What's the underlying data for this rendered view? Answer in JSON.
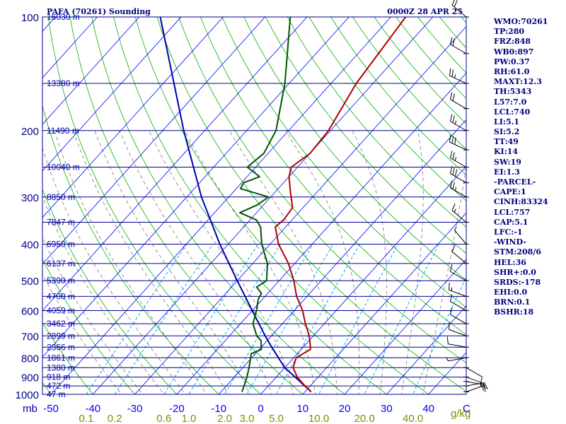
{
  "header": {
    "station": "PAFA (70261) Sounding",
    "time": "0000Z 28 APR 25"
  },
  "indices": [
    "WMO:70261",
    "TP:280",
    "FRZ:848",
    "WB0:897",
    "PW:0.37",
    "RH:61.0",
    "MAXT:12.3",
    "TH:5343",
    "L57:7.0",
    "LCL:740",
    "LI:5.1",
    "SI:5.2",
    "TT:49",
    "KI:14",
    "SW:19",
    "EI:1.3",
    "-PARCEL-",
    "CAPE:1",
    "CINH:83324",
    "LCL:757",
    "CAP:5.1",
    "LFC:-1",
    "-WIND-",
    "STM:208/6",
    "HEL:36",
    "SHR+:0.0",
    "SRDS:-178",
    "EHI:0.0",
    "BRN:0.1",
    "BSHR:18"
  ],
  "colors": {
    "isobar": "#00008b",
    "isotherm": "#0000ff",
    "dry_adiabat": "#00b000",
    "moist_adiabat": "#777777",
    "mixing_ratio": "#00aaff",
    "temperature": "#b00000",
    "dewpoint": "#005500",
    "parcel": "#0000aa",
    "mixing_label": "#888800"
  },
  "chart_data": {
    "type": "skew-t",
    "pressure_axis": {
      "scale": "log",
      "range": [
        1000,
        100
      ],
      "unit": "mb",
      "tick_labels": [
        "100",
        "200",
        "300",
        "400",
        "500",
        "600",
        "700",
        "800",
        "900",
        "1000"
      ]
    },
    "temperature_axis": {
      "unit": "C",
      "range": [
        -50,
        50
      ],
      "tick_labels": [
        "-50",
        "-40",
        "-30",
        "-20",
        "-10",
        "0",
        "10",
        "20",
        "30",
        "40"
      ]
    },
    "height_labels": [
      {
        "p": 100,
        "text": "16030 m"
      },
      {
        "p": 150,
        "text": "13380 m"
      },
      {
        "p": 200,
        "text": "11490 m"
      },
      {
        "p": 250,
        "text": "10040 m"
      },
      {
        "p": 300,
        "text": "8850 m"
      },
      {
        "p": 350,
        "text": "7847 m"
      },
      {
        "p": 400,
        "text": "6950 m"
      },
      {
        "p": 450,
        "text": "6137 m"
      },
      {
        "p": 500,
        "text": "5390 m"
      },
      {
        "p": 550,
        "text": "4700 m"
      },
      {
        "p": 600,
        "text": "4059 m"
      },
      {
        "p": 650,
        "text": "3462 m"
      },
      {
        "p": 700,
        "text": "2899 m"
      },
      {
        "p": 750,
        "text": "2366 m"
      },
      {
        "p": 800,
        "text": "1861 m"
      },
      {
        "p": 850,
        "text": "1380 m"
      },
      {
        "p": 900,
        "text": "918 m"
      },
      {
        "p": 950,
        "text": "472 m"
      },
      {
        "p": 1000,
        "text": "47 m"
      }
    ],
    "mixing_ratio_axis": {
      "unit": "g/kg",
      "labels": [
        "0.1",
        "0.2",
        "0.6",
        "1.0",
        "2.0",
        "3.0",
        "5.0",
        "10.0",
        "20.0",
        "40.0"
      ]
    },
    "temperature": [
      {
        "p": 985,
        "t": 11.5
      },
      {
        "p": 940,
        "t": 8.0
      },
      {
        "p": 900,
        "t": 5.0
      },
      {
        "p": 850,
        "t": 2.0
      },
      {
        "p": 800,
        "t": 0.6
      },
      {
        "p": 760,
        "t": 2.2
      },
      {
        "p": 740,
        "t": 1.2
      },
      {
        "p": 700,
        "t": -1.0
      },
      {
        "p": 650,
        "t": -4.5
      },
      {
        "p": 600,
        "t": -8.0
      },
      {
        "p": 550,
        "t": -12.5
      },
      {
        "p": 500,
        "t": -16.5
      },
      {
        "p": 450,
        "t": -21.5
      },
      {
        "p": 400,
        "t": -28.0
      },
      {
        "p": 360,
        "t": -32.5
      },
      {
        "p": 345,
        "t": -32.0
      },
      {
        "p": 320,
        "t": -32.5
      },
      {
        "p": 290,
        "t": -36.5
      },
      {
        "p": 265,
        "t": -40.0
      },
      {
        "p": 250,
        "t": -41.5
      },
      {
        "p": 230,
        "t": -40.0
      },
      {
        "p": 200,
        "t": -40.5
      },
      {
        "p": 150,
        "t": -44.0
      },
      {
        "p": 100,
        "t": -46.5
      }
    ],
    "dewpoint": [
      {
        "p": 985,
        "t": -5.0
      },
      {
        "p": 940,
        "t": -6.0
      },
      {
        "p": 900,
        "t": -7.0
      },
      {
        "p": 850,
        "t": -8.5
      },
      {
        "p": 780,
        "t": -11.0
      },
      {
        "p": 760,
        "t": -9.5
      },
      {
        "p": 720,
        "t": -11.5
      },
      {
        "p": 700,
        "t": -13.5
      },
      {
        "p": 650,
        "t": -17.0
      },
      {
        "p": 600,
        "t": -19.0
      },
      {
        "p": 560,
        "t": -21.0
      },
      {
        "p": 540,
        "t": -21.5
      },
      {
        "p": 520,
        "t": -24.0
      },
      {
        "p": 500,
        "t": -23.0
      },
      {
        "p": 450,
        "t": -26.5
      },
      {
        "p": 400,
        "t": -32.0
      },
      {
        "p": 360,
        "t": -36.0
      },
      {
        "p": 345,
        "t": -38.5
      },
      {
        "p": 330,
        "t": -44.0
      },
      {
        "p": 315,
        "t": -41.5
      },
      {
        "p": 300,
        "t": -40.5
      },
      {
        "p": 285,
        "t": -49.0
      },
      {
        "p": 275,
        "t": -49.5
      },
      {
        "p": 265,
        "t": -47.0
      },
      {
        "p": 250,
        "t": -52.0
      },
      {
        "p": 230,
        "t": -51.0
      },
      {
        "p": 200,
        "t": -53.0
      },
      {
        "p": 150,
        "t": -61.0
      },
      {
        "p": 100,
        "t": -74.0
      }
    ],
    "parcel": [
      {
        "p": 985,
        "t": 11.5
      },
      {
        "p": 900,
        "t": 4.5
      },
      {
        "p": 850,
        "t": 0.0
      },
      {
        "p": 800,
        "t": -3.6
      },
      {
        "p": 750,
        "t": -7.5
      },
      {
        "p": 700,
        "t": -11.5
      },
      {
        "p": 600,
        "t": -20.0
      },
      {
        "p": 500,
        "t": -30.0
      },
      {
        "p": 400,
        "t": -42.0
      },
      {
        "p": 300,
        "t": -56.5
      },
      {
        "p": 200,
        "t": -75.0
      },
      {
        "p": 100,
        "t": -105.0
      }
    ],
    "winds": [
      {
        "p": 985,
        "dir": 70,
        "spd": 5
      },
      {
        "p": 950,
        "dir": 80,
        "spd": 10
      },
      {
        "p": 925,
        "dir": 100,
        "spd": 15
      },
      {
        "p": 900,
        "dir": 110,
        "spd": 15
      },
      {
        "p": 850,
        "dir": 120,
        "spd": 10
      },
      {
        "p": 800,
        "dir": 260,
        "spd": 5
      },
      {
        "p": 750,
        "dir": 280,
        "spd": 10
      },
      {
        "p": 700,
        "dir": 290,
        "spd": 10
      },
      {
        "p": 650,
        "dir": 300,
        "spd": 10
      },
      {
        "p": 600,
        "dir": 300,
        "spd": 10
      },
      {
        "p": 550,
        "dir": 290,
        "spd": 15
      },
      {
        "p": 500,
        "dir": 300,
        "spd": 10
      },
      {
        "p": 450,
        "dir": 310,
        "spd": 10
      },
      {
        "p": 400,
        "dir": 320,
        "spd": 5
      },
      {
        "p": 350,
        "dir": 310,
        "spd": 15
      },
      {
        "p": 300,
        "dir": 300,
        "spd": 25
      },
      {
        "p": 275,
        "dir": 300,
        "spd": 30
      },
      {
        "p": 250,
        "dir": 300,
        "spd": 25
      },
      {
        "p": 225,
        "dir": 295,
        "spd": 30
      },
      {
        "p": 200,
        "dir": 300,
        "spd": 25
      },
      {
        "p": 175,
        "dir": 300,
        "spd": 20
      },
      {
        "p": 150,
        "dir": 295,
        "spd": 25
      },
      {
        "p": 125,
        "dir": 300,
        "spd": 20
      },
      {
        "p": 100,
        "dir": 310,
        "spd": 20
      }
    ]
  }
}
